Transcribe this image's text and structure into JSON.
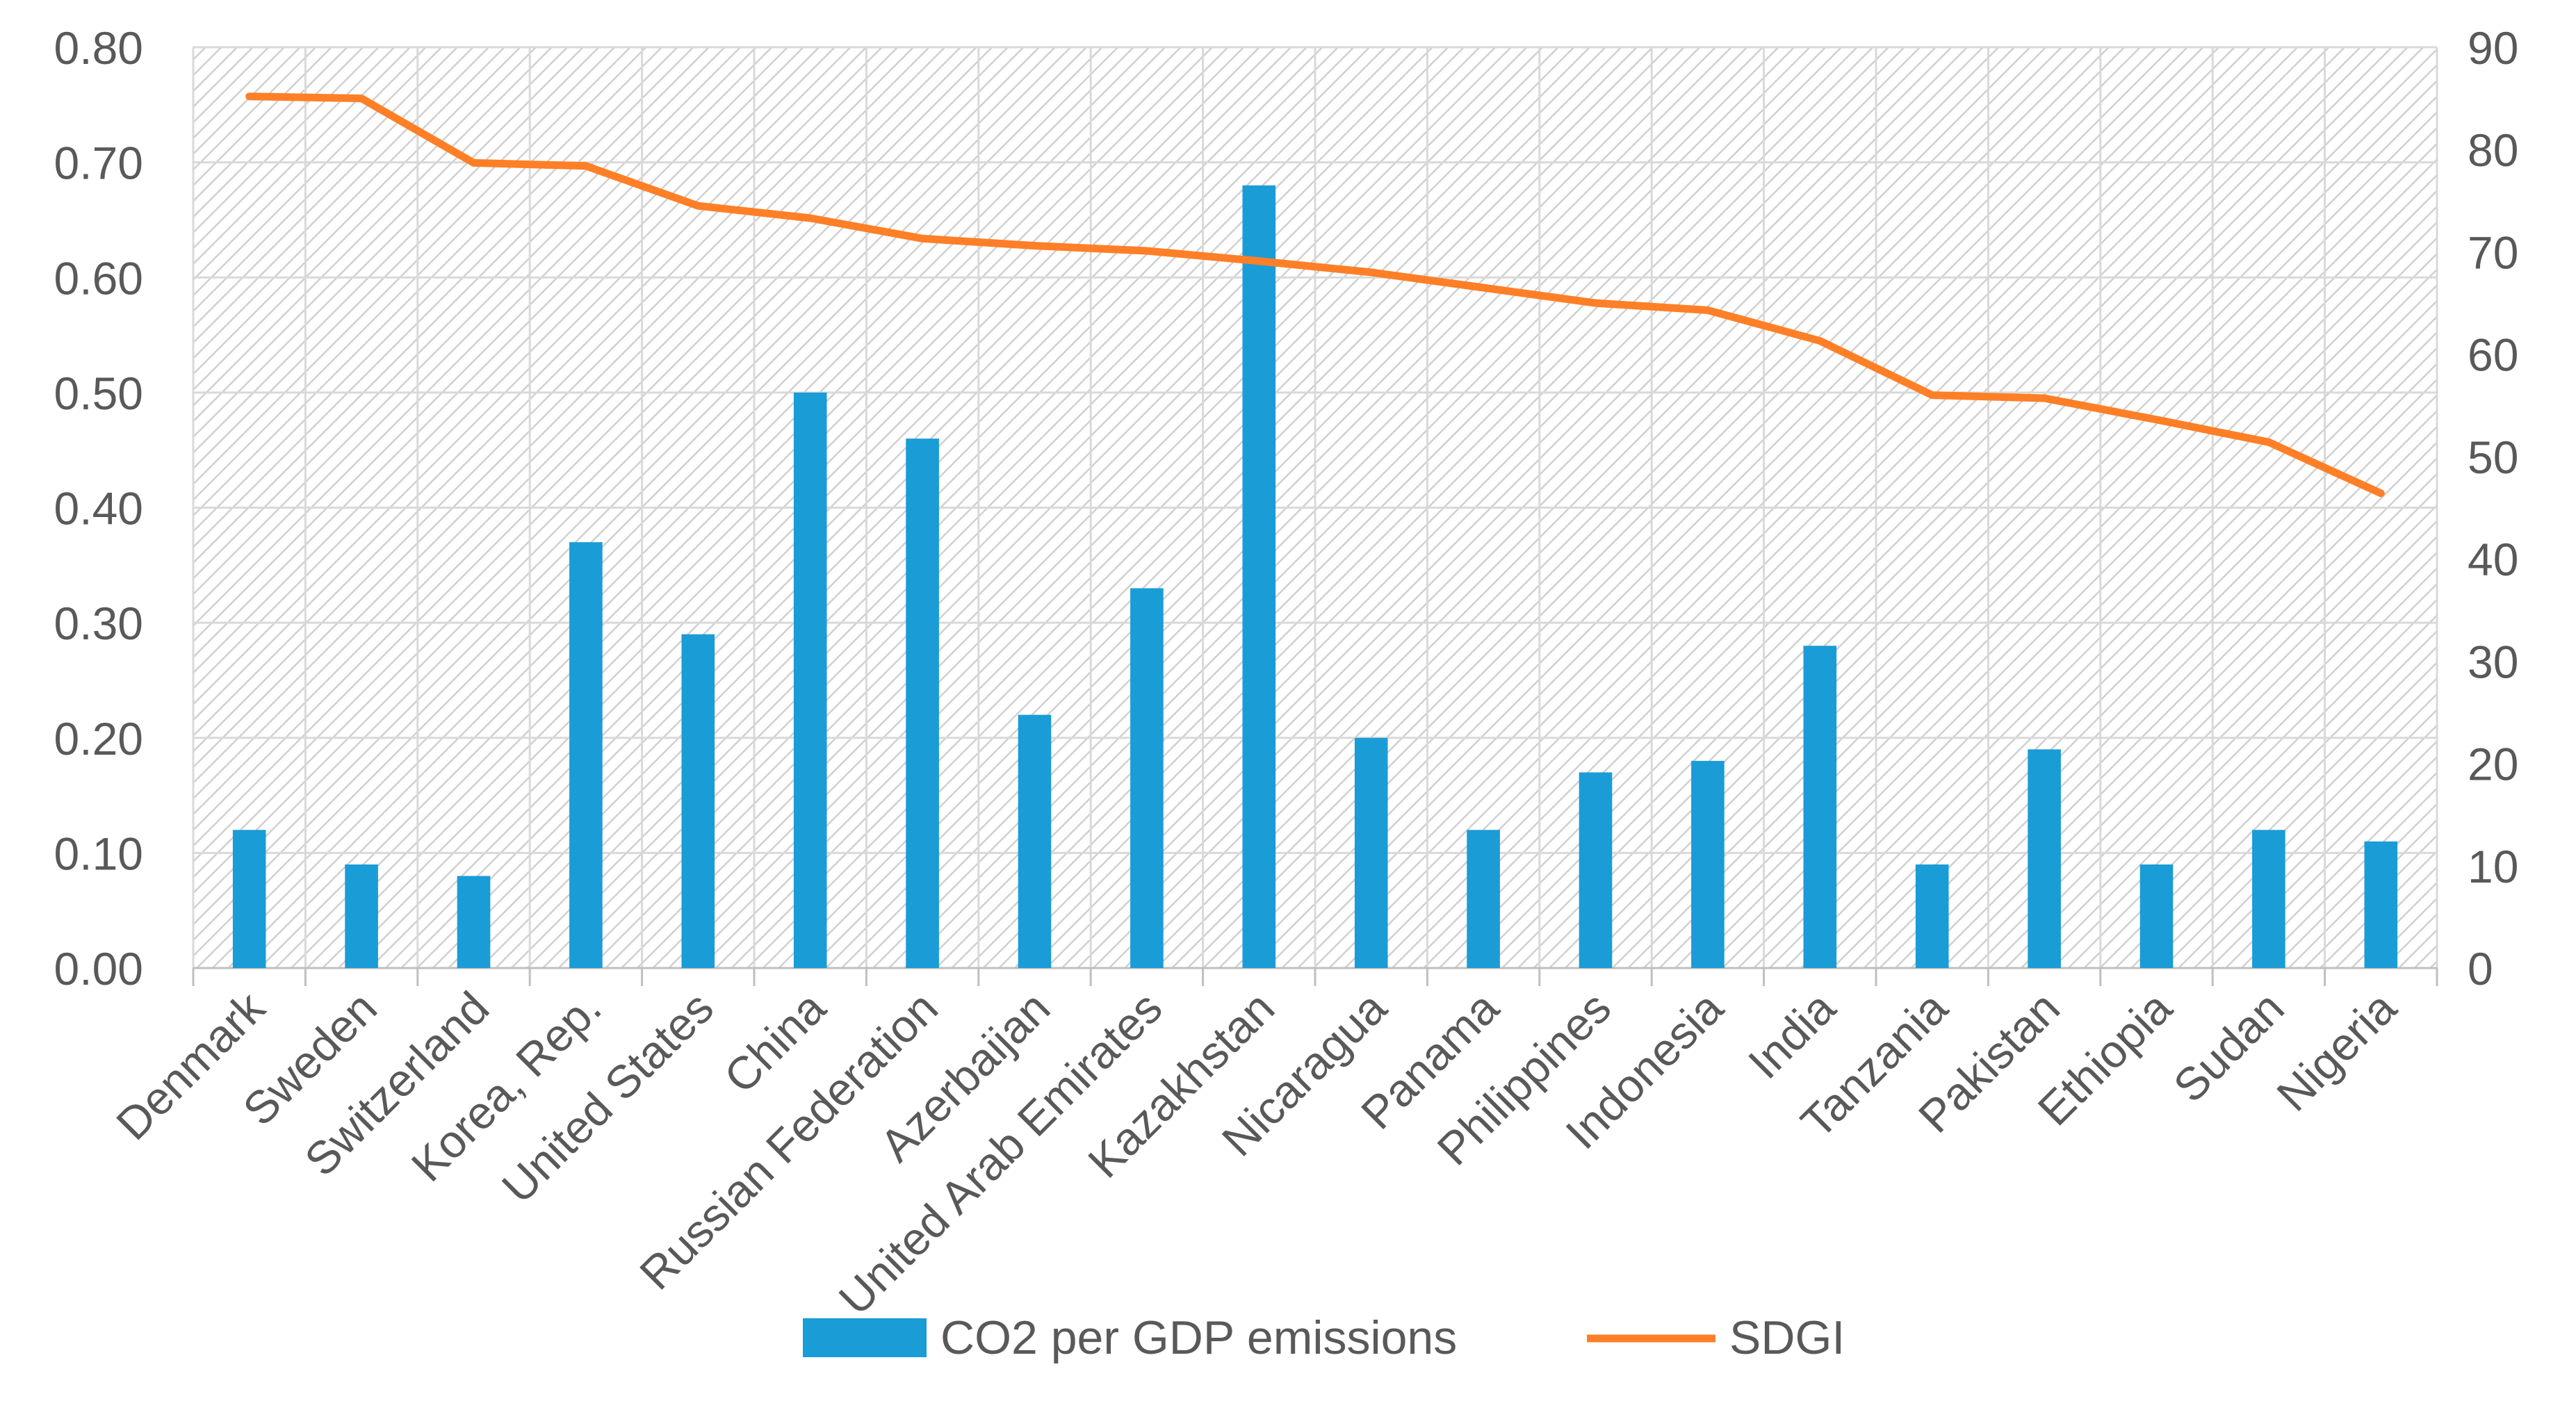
{
  "chart_data": {
    "type": "bar+line",
    "title": "",
    "categories": [
      "Denmark",
      "Sweden",
      "Switzerland",
      "Korea, Rep.",
      "United States",
      "China",
      "Russian Federation",
      "Azerbaijan",
      "United Arab Emirates",
      "Kazakhstan",
      "Nicaragua",
      "Panama",
      "Philippines",
      "Indonesia",
      "India",
      "Tanzania",
      "Pakistan",
      "Ethiopia",
      "Sudan",
      "Nigeria"
    ],
    "series": [
      {
        "name": "CO2 per GDP emissions",
        "type": "bar",
        "axis": "left",
        "color": "#1a9cd7",
        "values": [
          0.12,
          0.09,
          0.08,
          0.37,
          0.29,
          0.5,
          0.46,
          0.22,
          0.33,
          0.68,
          0.2,
          0.12,
          0.17,
          0.18,
          0.28,
          0.09,
          0.19,
          0.09,
          0.12,
          0.11
        ]
      },
      {
        "name": "SDGI",
        "type": "line",
        "axis": "right",
        "color": "#ff7f27",
        "values": [
          85.2,
          85.0,
          78.7,
          78.4,
          74.5,
          73.3,
          71.3,
          70.6,
          70.1,
          69.1,
          68.0,
          66.5,
          65.0,
          64.3,
          61.3,
          56.0,
          55.7,
          53.6,
          51.4,
          46.4
        ]
      }
    ],
    "left_axis": {
      "min": 0,
      "max": 0.8,
      "step": 0.1,
      "tick_labels": [
        "0.00",
        "0.10",
        "0.20",
        "0.30",
        "0.40",
        "0.50",
        "0.60",
        "0.70",
        "0.80"
      ]
    },
    "right_axis": {
      "min": 0,
      "max": 90,
      "step": 10,
      "tick_labels": [
        "0",
        "10",
        "20",
        "30",
        "40",
        "50",
        "60",
        "70",
        "80",
        "90"
      ]
    },
    "xlabel": "",
    "ylabel": "",
    "grid": true,
    "legend": {
      "position": "bottom-center",
      "entries": [
        "CO2 per GDP emissions",
        "SDGI"
      ]
    }
  }
}
